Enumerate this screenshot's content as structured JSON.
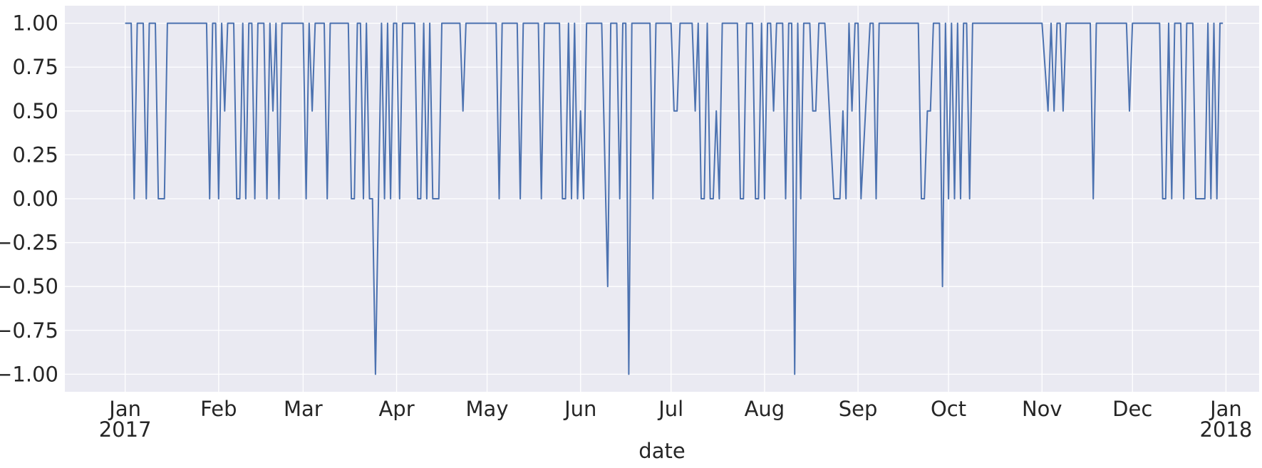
{
  "chart_data": {
    "type": "line",
    "title": "",
    "xlabel": "date",
    "ylabel": "",
    "grid": true,
    "xlim": [
      "2016-12-12",
      "2018-01-12"
    ],
    "ylim": [
      -1.1,
      1.1
    ],
    "yticks": [
      1.0,
      0.75,
      0.5,
      0.25,
      0.0,
      -0.25,
      -0.5,
      -0.75,
      -1.0
    ],
    "ytick_labels": [
      "1.00",
      "0.75",
      "0.50",
      "0.25",
      "0.00",
      "−0.25",
      "−0.50",
      "−0.75",
      "−1.00"
    ],
    "xticks": [
      {
        "date": "2017-01-01",
        "label": "Jan",
        "label2": "2017"
      },
      {
        "date": "2017-02-01",
        "label": "Feb",
        "label2": ""
      },
      {
        "date": "2017-03-01",
        "label": "Mar",
        "label2": ""
      },
      {
        "date": "2017-04-01",
        "label": "Apr",
        "label2": ""
      },
      {
        "date": "2017-05-01",
        "label": "May",
        "label2": ""
      },
      {
        "date": "2017-06-01",
        "label": "Jun",
        "label2": ""
      },
      {
        "date": "2017-07-01",
        "label": "Jul",
        "label2": ""
      },
      {
        "date": "2017-08-01",
        "label": "Aug",
        "label2": ""
      },
      {
        "date": "2017-09-01",
        "label": "Sep",
        "label2": ""
      },
      {
        "date": "2017-10-01",
        "label": "Oct",
        "label2": ""
      },
      {
        "date": "2017-11-01",
        "label": "Nov",
        "label2": ""
      },
      {
        "date": "2017-12-01",
        "label": "Dec",
        "label2": ""
      },
      {
        "date": "2018-01-01",
        "label": "Jan",
        "label2": "2018"
      }
    ],
    "series": [
      {
        "color": "#4c72b0",
        "points": [
          [
            "2017-01-01",
            1
          ],
          [
            "2017-01-03",
            1
          ],
          [
            "2017-01-04",
            0
          ],
          [
            "2017-01-05",
            1
          ],
          [
            "2017-01-07",
            1
          ],
          [
            "2017-01-08",
            0
          ],
          [
            "2017-01-09",
            1
          ],
          [
            "2017-01-11",
            1
          ],
          [
            "2017-01-12",
            0
          ],
          [
            "2017-01-14",
            0
          ],
          [
            "2017-01-15",
            1
          ],
          [
            "2017-01-28",
            1
          ],
          [
            "2017-01-29",
            0
          ],
          [
            "2017-01-30",
            1
          ],
          [
            "2017-01-31",
            1
          ],
          [
            "2017-02-01",
            0
          ],
          [
            "2017-02-02",
            1
          ],
          [
            "2017-02-03",
            0.5
          ],
          [
            "2017-02-04",
            1
          ],
          [
            "2017-02-06",
            1
          ],
          [
            "2017-02-07",
            0
          ],
          [
            "2017-02-08",
            0
          ],
          [
            "2017-02-09",
            1
          ],
          [
            "2017-02-10",
            0
          ],
          [
            "2017-02-11",
            1
          ],
          [
            "2017-02-12",
            1
          ],
          [
            "2017-02-13",
            0
          ],
          [
            "2017-02-14",
            1
          ],
          [
            "2017-02-16",
            1
          ],
          [
            "2017-02-17",
            0
          ],
          [
            "2017-02-18",
            1
          ],
          [
            "2017-02-19",
            0.5
          ],
          [
            "2017-02-20",
            1
          ],
          [
            "2017-02-21",
            0
          ],
          [
            "2017-02-22",
            1
          ],
          [
            "2017-03-01",
            1
          ],
          [
            "2017-03-02",
            0
          ],
          [
            "2017-03-03",
            1
          ],
          [
            "2017-03-04",
            0.5
          ],
          [
            "2017-03-05",
            1
          ],
          [
            "2017-03-08",
            1
          ],
          [
            "2017-03-09",
            0
          ],
          [
            "2017-03-10",
            1
          ],
          [
            "2017-03-16",
            1
          ],
          [
            "2017-03-17",
            0
          ],
          [
            "2017-03-18",
            0
          ],
          [
            "2017-03-19",
            1
          ],
          [
            "2017-03-20",
            1
          ],
          [
            "2017-03-21",
            0
          ],
          [
            "2017-03-22",
            1
          ],
          [
            "2017-03-23",
            0
          ],
          [
            "2017-03-24",
            0
          ],
          [
            "2017-03-25",
            -1
          ],
          [
            "2017-03-27",
            1
          ],
          [
            "2017-03-28",
            0
          ],
          [
            "2017-03-29",
            1
          ],
          [
            "2017-03-30",
            0
          ],
          [
            "2017-03-31",
            1
          ],
          [
            "2017-04-01",
            1
          ],
          [
            "2017-04-02",
            0
          ],
          [
            "2017-04-03",
            1
          ],
          [
            "2017-04-07",
            1
          ],
          [
            "2017-04-08",
            0
          ],
          [
            "2017-04-09",
            0
          ],
          [
            "2017-04-10",
            1
          ],
          [
            "2017-04-11",
            0
          ],
          [
            "2017-04-12",
            1
          ],
          [
            "2017-04-13",
            0
          ],
          [
            "2017-04-15",
            0
          ],
          [
            "2017-04-16",
            1
          ],
          [
            "2017-04-22",
            1
          ],
          [
            "2017-04-23",
            0.5
          ],
          [
            "2017-04-24",
            1
          ],
          [
            "2017-05-04",
            1
          ],
          [
            "2017-05-05",
            0
          ],
          [
            "2017-05-06",
            1
          ],
          [
            "2017-05-11",
            1
          ],
          [
            "2017-05-12",
            0
          ],
          [
            "2017-05-13",
            1
          ],
          [
            "2017-05-18",
            1
          ],
          [
            "2017-05-19",
            0
          ],
          [
            "2017-05-20",
            1
          ],
          [
            "2017-05-25",
            1
          ],
          [
            "2017-05-26",
            0
          ],
          [
            "2017-05-27",
            0
          ],
          [
            "2017-05-28",
            1
          ],
          [
            "2017-05-29",
            0
          ],
          [
            "2017-05-30",
            1
          ],
          [
            "2017-05-31",
            0
          ],
          [
            "2017-06-01",
            0.5
          ],
          [
            "2017-06-02",
            0
          ],
          [
            "2017-06-03",
            1
          ],
          [
            "2017-06-08",
            1
          ],
          [
            "2017-06-10",
            -0.5
          ],
          [
            "2017-06-11",
            1
          ],
          [
            "2017-06-13",
            1
          ],
          [
            "2017-06-14",
            0
          ],
          [
            "2017-06-15",
            1
          ],
          [
            "2017-06-16",
            1
          ],
          [
            "2017-06-17",
            -1
          ],
          [
            "2017-06-18",
            1
          ],
          [
            "2017-06-24",
            1
          ],
          [
            "2017-06-25",
            0
          ],
          [
            "2017-06-26",
            1
          ],
          [
            "2017-07-01",
            1
          ],
          [
            "2017-07-02",
            0.5
          ],
          [
            "2017-07-03",
            0.5
          ],
          [
            "2017-07-04",
            1
          ],
          [
            "2017-07-08",
            1
          ],
          [
            "2017-07-09",
            0.5
          ],
          [
            "2017-07-10",
            1
          ],
          [
            "2017-07-11",
            0
          ],
          [
            "2017-07-12",
            0
          ],
          [
            "2017-07-13",
            1
          ],
          [
            "2017-07-14",
            0
          ],
          [
            "2017-07-15",
            0
          ],
          [
            "2017-07-16",
            0.5
          ],
          [
            "2017-07-17",
            0
          ],
          [
            "2017-07-18",
            1
          ],
          [
            "2017-07-23",
            1
          ],
          [
            "2017-07-24",
            0
          ],
          [
            "2017-07-25",
            0
          ],
          [
            "2017-07-26",
            1
          ],
          [
            "2017-07-28",
            1
          ],
          [
            "2017-07-29",
            0
          ],
          [
            "2017-07-30",
            0
          ],
          [
            "2017-07-31",
            1
          ],
          [
            "2017-08-01",
            0
          ],
          [
            "2017-08-02",
            1
          ],
          [
            "2017-08-03",
            1
          ],
          [
            "2017-08-04",
            0.5
          ],
          [
            "2017-08-05",
            1
          ],
          [
            "2017-08-07",
            1
          ],
          [
            "2017-08-08",
            0
          ],
          [
            "2017-08-09",
            1
          ],
          [
            "2017-08-10",
            1
          ],
          [
            "2017-08-11",
            -1
          ],
          [
            "2017-08-12",
            1
          ],
          [
            "2017-08-13",
            0
          ],
          [
            "2017-08-14",
            1
          ],
          [
            "2017-08-16",
            1
          ],
          [
            "2017-08-17",
            0.5
          ],
          [
            "2017-08-18",
            0.5
          ],
          [
            "2017-08-19",
            1
          ],
          [
            "2017-08-21",
            1
          ],
          [
            "2017-08-24",
            0
          ],
          [
            "2017-08-26",
            0
          ],
          [
            "2017-08-27",
            0.5
          ],
          [
            "2017-08-28",
            0
          ],
          [
            "2017-08-29",
            1
          ],
          [
            "2017-08-30",
            0.5
          ],
          [
            "2017-08-31",
            1
          ],
          [
            "2017-09-01",
            1
          ],
          [
            "2017-09-02",
            0
          ],
          [
            "2017-09-05",
            1
          ],
          [
            "2017-09-06",
            1
          ],
          [
            "2017-09-07",
            0
          ],
          [
            "2017-09-08",
            1
          ],
          [
            "2017-09-21",
            1
          ],
          [
            "2017-09-22",
            0
          ],
          [
            "2017-09-23",
            0
          ],
          [
            "2017-09-24",
            0.5
          ],
          [
            "2017-09-25",
            0.5
          ],
          [
            "2017-09-26",
            1
          ],
          [
            "2017-09-28",
            1
          ],
          [
            "2017-09-29",
            -0.5
          ],
          [
            "2017-09-30",
            1
          ],
          [
            "2017-10-01",
            0
          ],
          [
            "2017-10-02",
            1
          ],
          [
            "2017-10-03",
            0
          ],
          [
            "2017-10-04",
            1
          ],
          [
            "2017-10-05",
            0
          ],
          [
            "2017-10-06",
            1
          ],
          [
            "2017-10-07",
            1
          ],
          [
            "2017-10-08",
            0
          ],
          [
            "2017-10-09",
            1
          ],
          [
            "2017-11-01",
            1
          ],
          [
            "2017-11-03",
            0.5
          ],
          [
            "2017-11-04",
            1
          ],
          [
            "2017-11-05",
            0.5
          ],
          [
            "2017-11-06",
            1
          ],
          [
            "2017-11-07",
            1
          ],
          [
            "2017-11-08",
            0.5
          ],
          [
            "2017-11-09",
            1
          ],
          [
            "2017-11-17",
            1
          ],
          [
            "2017-11-18",
            0
          ],
          [
            "2017-11-19",
            1
          ],
          [
            "2017-11-29",
            1
          ],
          [
            "2017-11-30",
            0.5
          ],
          [
            "2017-12-01",
            1
          ],
          [
            "2017-12-10",
            1
          ],
          [
            "2017-12-11",
            0
          ],
          [
            "2017-12-12",
            0
          ],
          [
            "2017-12-13",
            1
          ],
          [
            "2017-12-14",
            0
          ],
          [
            "2017-12-15",
            1
          ],
          [
            "2017-12-17",
            1
          ],
          [
            "2017-12-18",
            0
          ],
          [
            "2017-12-19",
            1
          ],
          [
            "2017-12-21",
            1
          ],
          [
            "2017-12-22",
            0
          ],
          [
            "2017-12-25",
            0
          ],
          [
            "2017-12-26",
            1
          ],
          [
            "2017-12-27",
            0
          ],
          [
            "2017-12-28",
            1
          ],
          [
            "2017-12-29",
            0
          ],
          [
            "2017-12-30",
            1
          ],
          [
            "2017-12-31",
            1
          ]
        ]
      }
    ]
  }
}
